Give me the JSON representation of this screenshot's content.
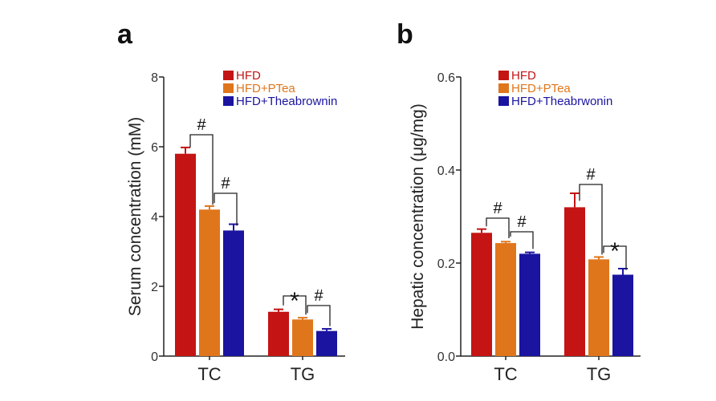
{
  "chart_data": [
    {
      "type": "bar",
      "panel": "a",
      "ylabel": "Serum concentration (mM)",
      "ylim": [
        0,
        8
      ],
      "yticks": [
        0,
        2,
        4,
        6,
        8
      ],
      "categories": [
        "TC",
        "TG"
      ],
      "legend_placement": "top-right",
      "colors": [
        "#c41414",
        "#e0761c",
        "#1a14a0"
      ],
      "series": [
        {
          "name": "HFD",
          "values": [
            5.8,
            1.27
          ],
          "errors": [
            0.18,
            0.07
          ]
        },
        {
          "name": "HFD+PTea",
          "values": [
            4.2,
            1.05
          ],
          "errors": [
            0.1,
            0.05
          ]
        },
        {
          "name": "HFD+Theabrownin",
          "values": [
            3.6,
            0.72
          ],
          "errors": [
            0.18,
            0.06
          ]
        }
      ],
      "annotations": [
        {
          "label": "#",
          "category": 0,
          "from": 0,
          "to": 1
        },
        {
          "label": "#",
          "category": 0,
          "from": 1,
          "to": 2
        },
        {
          "label": "*",
          "category": 1,
          "from": 0,
          "to": 1
        },
        {
          "label": "#",
          "category": 1,
          "from": 1,
          "to": 2
        }
      ]
    },
    {
      "type": "bar",
      "panel": "b",
      "ylabel": "Hepatic concentration (μg/mg)",
      "ylim": [
        0,
        0.6
      ],
      "yticks": [
        "0.0",
        "0.2",
        "0.4",
        "0.6"
      ],
      "categories": [
        "TC",
        "TG"
      ],
      "legend_placement": "top-right",
      "colors": [
        "#c41414",
        "#e0761c",
        "#1a14a0"
      ],
      "series": [
        {
          "name": "HFD",
          "values": [
            0.265,
            0.32
          ],
          "errors": [
            0.008,
            0.03
          ]
        },
        {
          "name": "HFD+PTea",
          "values": [
            0.243,
            0.208
          ],
          "errors": [
            0.003,
            0.005
          ]
        },
        {
          "name": "HFD+Theabrwonin",
          "values": [
            0.22,
            0.175
          ],
          "errors": [
            0.003,
            0.013
          ]
        }
      ],
      "annotations": [
        {
          "label": "#",
          "category": 0,
          "from": 0,
          "to": 1
        },
        {
          "label": "#",
          "category": 0,
          "from": 1,
          "to": 2
        },
        {
          "label": "#",
          "category": 1,
          "from": 0,
          "to": 1
        },
        {
          "label": "*",
          "category": 1,
          "from": 1,
          "to": 2
        }
      ]
    }
  ]
}
